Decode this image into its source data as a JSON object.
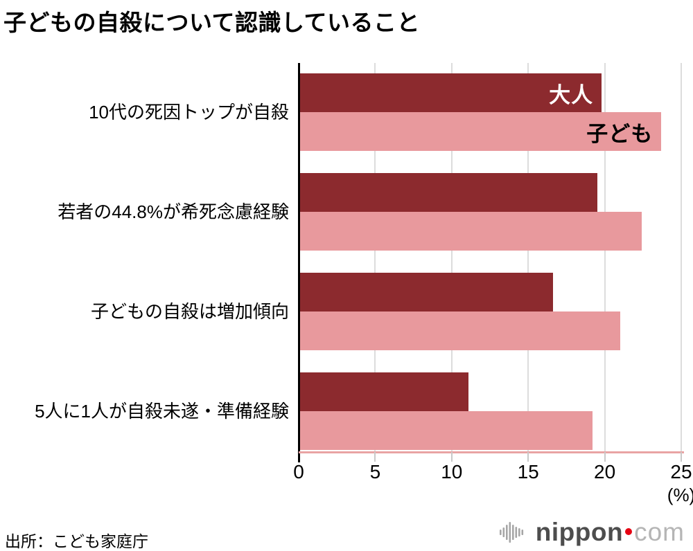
{
  "title": "子どもの自殺について認識していること",
  "source": "出所：こども家庭庁",
  "axis": {
    "ticks": [
      "0",
      "5",
      "10",
      "15",
      "20",
      "25"
    ],
    "unit_label": "(%)"
  },
  "colors": {
    "adult_bar": "#8c2a2e",
    "child_bar": "#e8999d",
    "grid": "#dcdcdc",
    "baseline": "#e9a3a3",
    "axis": "#000000",
    "logo_red": "#e60012"
  },
  "logo": {
    "icon": "sound-wave-icon",
    "brand": "nippon",
    "tld": "com"
  },
  "chart_data": {
    "type": "bar",
    "orientation": "horizontal",
    "title": "子どもの自殺について認識していること",
    "categories": [
      "10代の死因トップが自殺",
      "若者の44.8%が希死念慮経験",
      "子どもの自殺は増加傾向",
      "5人に1人が自殺未遂・準備経験"
    ],
    "series": [
      {
        "name": "大人",
        "color": "#8c2a2e",
        "label_color": "#ffffff",
        "values": [
          19.8,
          19.5,
          16.6,
          11.1
        ]
      },
      {
        "name": "子ども",
        "color": "#e8999d",
        "label_color": "#000000",
        "values": [
          23.7,
          22.4,
          21.0,
          19.2
        ]
      }
    ],
    "xlim": [
      0,
      25
    ],
    "xticks": [
      0,
      5,
      10,
      15,
      20,
      25
    ],
    "xlabel_unit": "(%)",
    "grid": "vertical",
    "legend_position": "inside-first-group-bars",
    "source": "出所：こども家庭庁"
  }
}
